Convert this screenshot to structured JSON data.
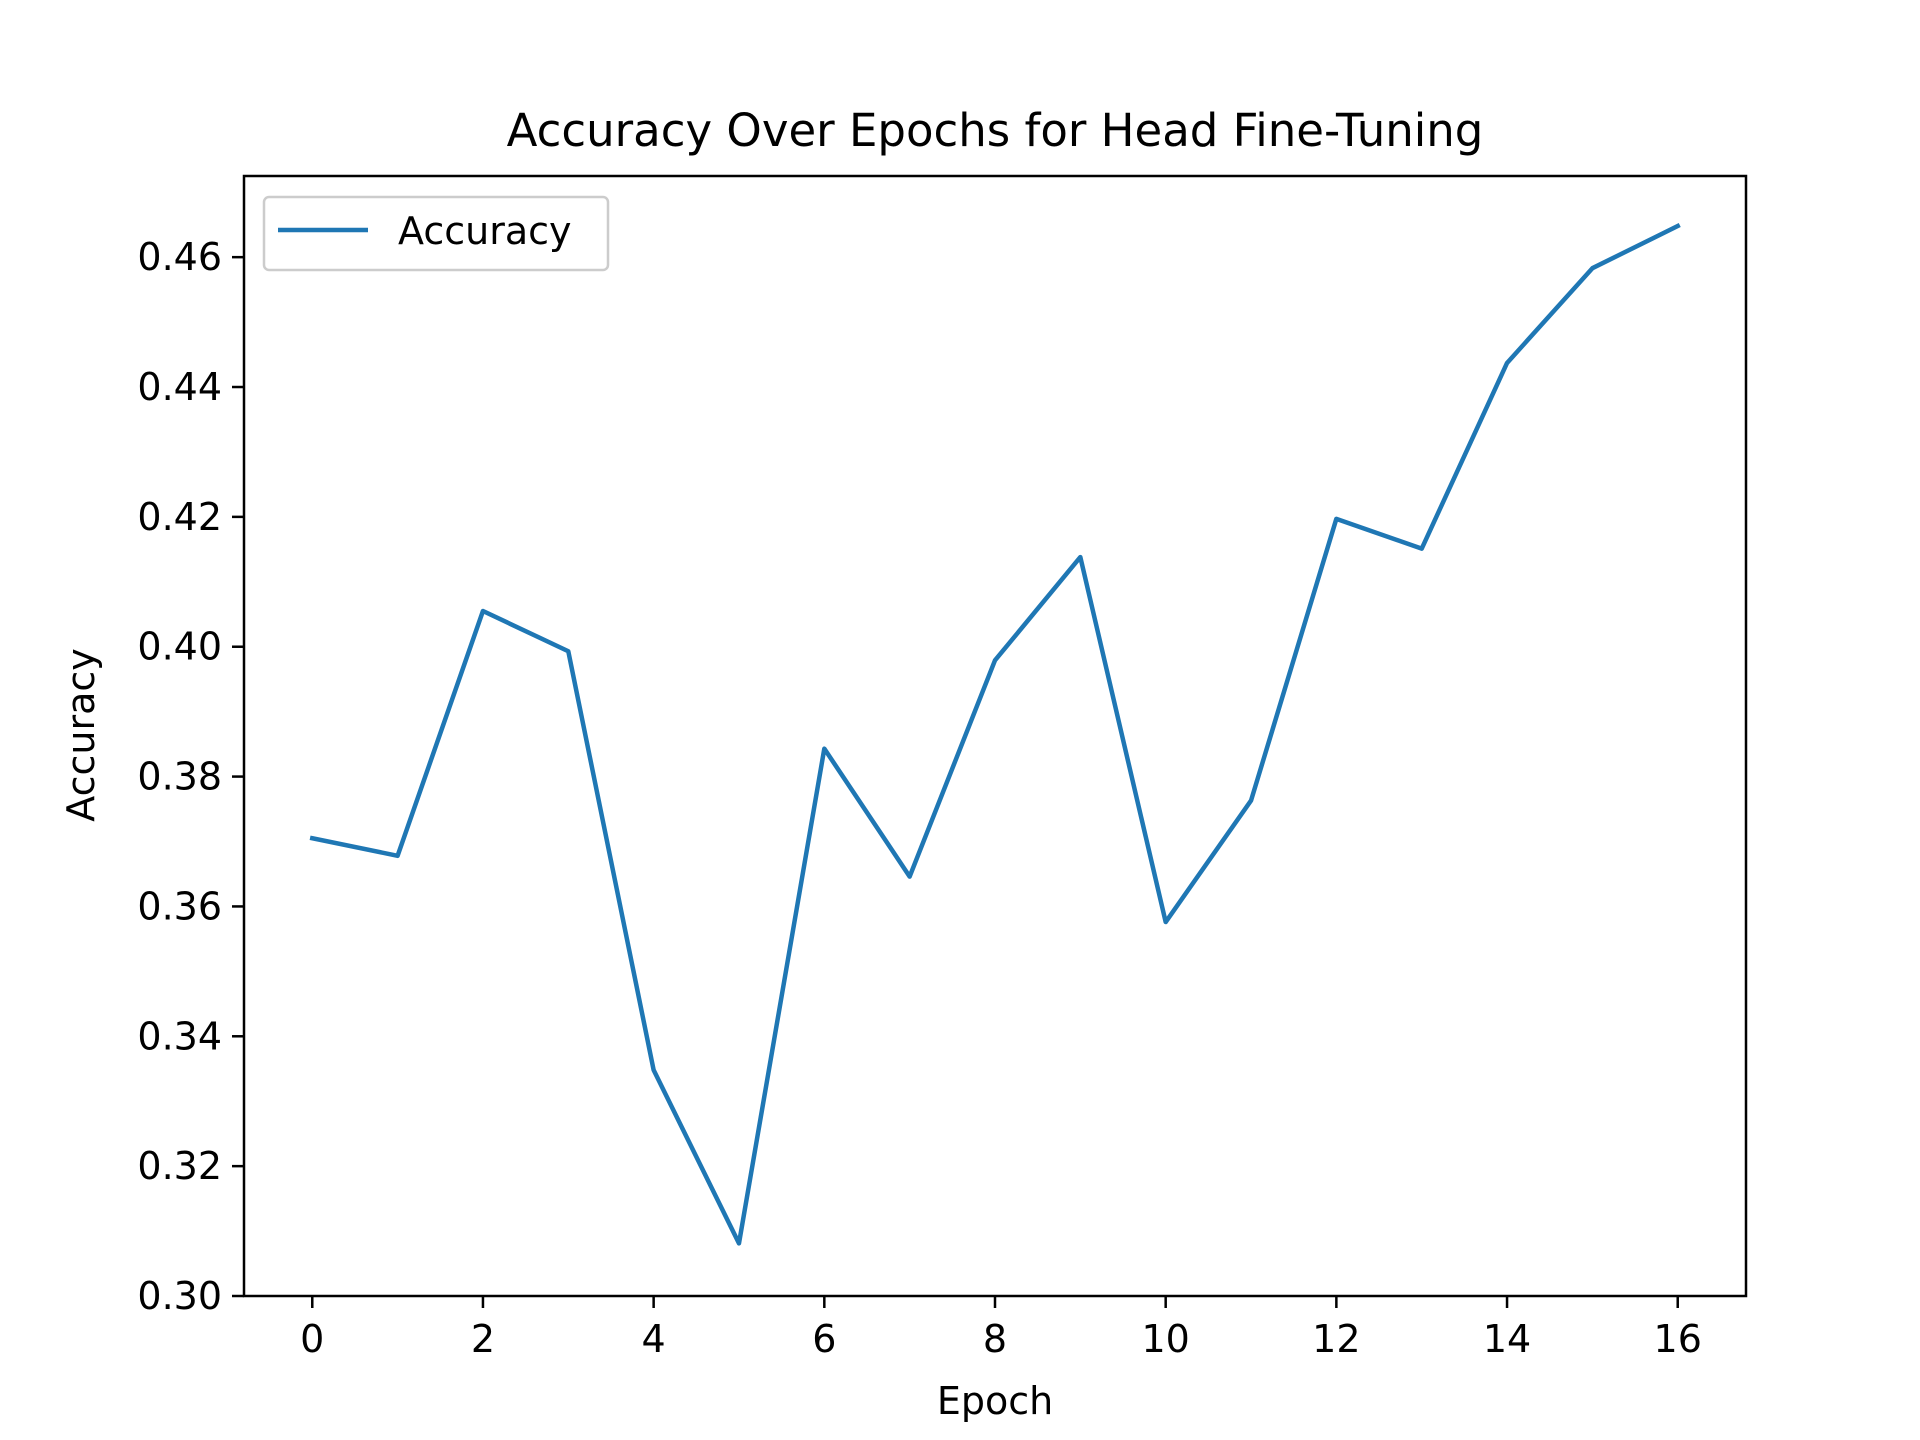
{
  "chart_data": {
    "type": "line",
    "title": "Accuracy Over Epochs for Head Fine-Tuning",
    "xlabel": "Epoch",
    "ylabel": "Accuracy",
    "x": [
      0,
      1,
      2,
      3,
      4,
      5,
      6,
      7,
      8,
      9,
      10,
      11,
      12,
      13,
      14,
      15,
      16
    ],
    "series": [
      {
        "name": "Accuracy",
        "color": "#1f77b4",
        "values": [
          0.3705,
          0.3678,
          0.4055,
          0.3993,
          0.3348,
          0.3081,
          0.3843,
          0.3646,
          0.3979,
          0.4138,
          0.3576,
          0.3763,
          0.4197,
          0.4151,
          0.4437,
          0.4583,
          0.4648
        ]
      }
    ],
    "xlim": [
      -0.8,
      16.8
    ],
    "ylim": [
      0.3,
      0.4725
    ],
    "xticks": [
      "0",
      "2",
      "4",
      "6",
      "8",
      "10",
      "12",
      "14",
      "16"
    ],
    "yticks": [
      "0.30",
      "0.32",
      "0.34",
      "0.36",
      "0.38",
      "0.40",
      "0.42",
      "0.44",
      "0.46"
    ],
    "legend": {
      "position": "top-left"
    },
    "grid": false
  }
}
